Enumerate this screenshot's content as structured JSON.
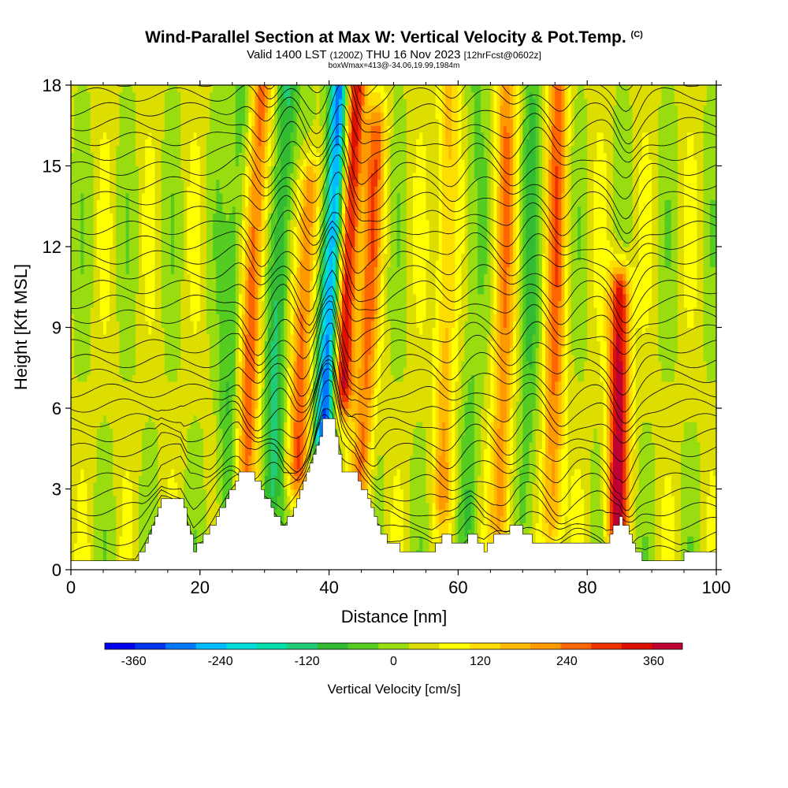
{
  "header": {
    "title": "Wind-Parallel Section at Max W: Vertical Velocity & Pot.Temp.",
    "copyright": "(C)",
    "valid_prefix": "Valid 1400 LST",
    "valid_utc": "(1200Z)",
    "valid_date": "THU 16 Nov 2023",
    "forecast": "[12hrFcst@0602z]",
    "boxwmax": "boxWmax=413@-34.06,19.99,1984m"
  },
  "chart_data": {
    "type": "heatmap",
    "title": "Wind-Parallel Section at Max W: Vertical Velocity & Pot.Temp.",
    "xlabel": "Distance [nm]",
    "ylabel": "Height [Kft MSL]",
    "xlim": [
      0,
      100
    ],
    "ylim": [
      0,
      18
    ],
    "xticks": [
      0,
      20,
      40,
      60,
      80,
      100
    ],
    "yticks": [
      0,
      3,
      6,
      9,
      12,
      15,
      18
    ],
    "colorbar": {
      "label": "Vertical Velocity [cm/s]",
      "range": [
        -400,
        400
      ],
      "tick_values": [
        -360,
        -240,
        -120,
        0,
        120,
        240,
        360
      ],
      "tick_labels": [
        "-360",
        "-240",
        "-120",
        "0",
        "120",
        "240",
        "360"
      ],
      "colors": [
        "#0000ee",
        "#0033ee",
        "#0077ff",
        "#00bbff",
        "#00dddd",
        "#00ddaa",
        "#22cc77",
        "#33bb33",
        "#55cc22",
        "#99dd11",
        "#dddd00",
        "#ffff00",
        "#ffdd00",
        "#ffbb00",
        "#ff9900",
        "#ff6600",
        "#ee3300",
        "#dd1100",
        "#c00030"
      ]
    },
    "features": {
      "updraft_cores": [
        {
          "x": 42.5,
          "y_bottom": 7,
          "y_top": 18,
          "peak": 360
        },
        {
          "x": 85,
          "y_bottom": 2,
          "y_top": 10,
          "peak": 360
        },
        {
          "x": 28,
          "y_bottom": 3,
          "y_top": 18,
          "peak": 240
        },
        {
          "x": 36,
          "y_bottom": 4,
          "y_top": 14,
          "peak": 240
        },
        {
          "x": 46,
          "y_bottom": 3,
          "y_top": 16,
          "peak": 200
        },
        {
          "x": 58,
          "y_bottom": 3,
          "y_top": 18,
          "peak": 150
        },
        {
          "x": 67,
          "y_bottom": 2,
          "y_top": 18,
          "peak": 180
        },
        {
          "x": 75,
          "y_bottom": 2,
          "y_top": 18,
          "peak": 200
        }
      ],
      "downdraft_cores": [
        {
          "x": 40,
          "y_bottom": 3,
          "y_top": 18,
          "peak": -360
        },
        {
          "x": 32,
          "y_bottom": 3,
          "y_top": 18,
          "peak": -160
        },
        {
          "x": 25,
          "y_bottom": 3,
          "y_top": 18,
          "peak": -100
        },
        {
          "x": 71,
          "y_bottom": 2,
          "y_top": 18,
          "peak": -80
        },
        {
          "x": 62,
          "y_bottom": 2,
          "y_top": 18,
          "peak": -60
        }
      ],
      "terrain_profile_kft": [
        [
          0,
          0.3
        ],
        [
          10,
          0.3
        ],
        [
          12,
          1.3
        ],
        [
          14,
          2.6
        ],
        [
          17,
          2.6
        ],
        [
          19,
          0.8
        ],
        [
          21,
          1.3
        ],
        [
          24,
          2.6
        ],
        [
          26,
          3.6
        ],
        [
          28,
          3.6
        ],
        [
          31,
          2.3
        ],
        [
          33,
          1.6
        ],
        [
          35,
          2.6
        ],
        [
          37,
          3.9
        ],
        [
          39,
          5.5
        ],
        [
          40.5,
          5.5
        ],
        [
          42,
          3.6
        ],
        [
          44,
          3.6
        ],
        [
          46,
          2.6
        ],
        [
          48,
          1.3
        ],
        [
          51,
          0.8
        ],
        [
          56,
          0.8
        ],
        [
          58,
          1.3
        ],
        [
          60,
          1.0
        ],
        [
          62,
          1.3
        ],
        [
          64,
          0.8
        ],
        [
          66,
          1.3
        ],
        [
          69,
          1.6
        ],
        [
          72,
          1.0
        ],
        [
          83,
          1.0
        ],
        [
          85,
          2.0
        ],
        [
          87,
          1.0
        ],
        [
          89,
          0.3
        ],
        [
          94,
          0.3
        ],
        [
          95,
          0.6
        ],
        [
          100,
          0.6
        ]
      ]
    }
  }
}
